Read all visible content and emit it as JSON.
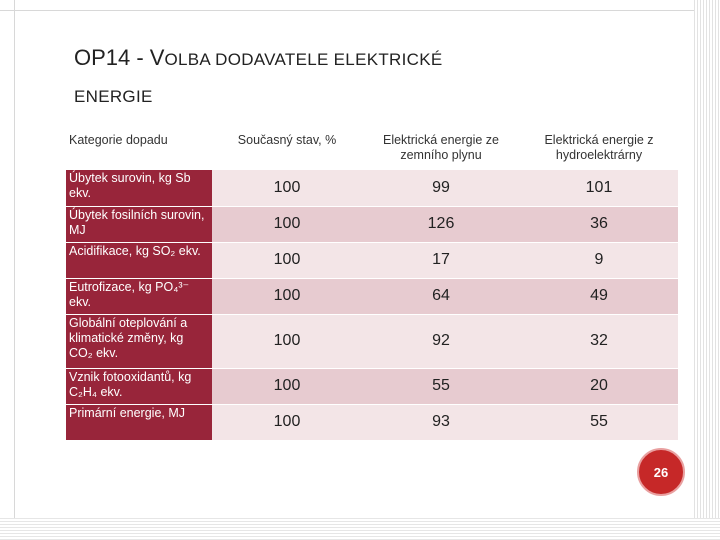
{
  "title": {
    "part1": "OP14 - V",
    "part2": "OLBA DODAVATELE ELEKTRICKÉ",
    "part3": "ENERGIE"
  },
  "table": {
    "headers": [
      "Kategorie dopadu",
      "Současný stav, %",
      "Elektrická energie ze zemního plynu",
      "Elektrická energie z hydroelektrárny"
    ],
    "rows": [
      {
        "category": "Úbytek surovin, kg Sb ekv.",
        "values": [
          "100",
          "99",
          "101"
        ]
      },
      {
        "category": "Úbytek fosilních surovin, MJ",
        "values": [
          "100",
          "126",
          "36"
        ]
      },
      {
        "category": "Acidifikace, kg SO₂ ekv.",
        "values": [
          "100",
          "17",
          "9"
        ]
      },
      {
        "category": "Eutrofizace, kg PO₄³⁻ ekv.",
        "values": [
          "100",
          "64",
          "49"
        ]
      },
      {
        "category": "Globální oteplování a klimatické změny, kg CO₂ ekv.",
        "values": [
          "100",
          "92",
          "32"
        ]
      },
      {
        "category": "Vznik fotooxidantů, kg C₂H₄ ekv.",
        "values": [
          "100",
          "55",
          "20"
        ]
      },
      {
        "category": "Primární energie, MJ",
        "values": [
          "100",
          "93",
          "55"
        ]
      }
    ]
  },
  "page_number": "26",
  "colors": {
    "category_bg": "#98253a",
    "row_light": "#f3e5e7",
    "row_dark": "#e7cbd0",
    "page_badge": "#c62828"
  }
}
